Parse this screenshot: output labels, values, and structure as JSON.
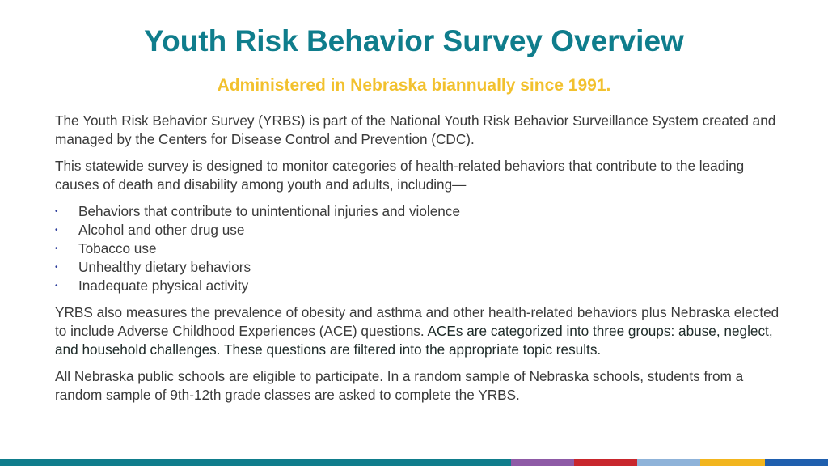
{
  "slide": {
    "title": "Youth Risk Behavior Survey Overview",
    "subtitle": "Administered in Nebraska biannually since 1991.",
    "paragraph1": "The Youth Risk Behavior Survey (YRBS) is part of the National Youth Risk Behavior Surveillance System created and managed by the Centers for Disease Control and Prevention (CDC).",
    "paragraph2": "This statewide survey is designed to monitor categories of health-related behaviors that contribute to the leading causes of death and disability among youth and adults, including—",
    "bullets": [
      "Behaviors that contribute to unintentional injuries and violence",
      "Alcohol and other drug use",
      "Tobacco use",
      "Unhealthy dietary behaviors",
      "Inadequate physical activity"
    ],
    "bullet_glyph": "•",
    "paragraph3_a": "YRBS also measures the prevalence of obesity and asthma and other health-related behaviors plus Nebraska elected to include Adverse Childhood Experiences (ACE) questions.",
    "paragraph3_b": " ACEs are categorized into three groups: abuse, neglect, and household challenges. These questions are filtered into the appropriate topic results.",
    "paragraph4": "All Nebraska public schools are eligible to participate. In a random sample of Nebraska schools, students from a random sample of 9th-12th grade classes are asked to complete the YRBS."
  },
  "colors": {
    "title": "#0f7d8c",
    "subtitle": "#f2c12e",
    "text": "#3a3a3a",
    "bullet": "#2a3b9a",
    "footer": [
      "#0f7d8c",
      "#8e5aa6",
      "#c8272d",
      "#8fb3d9",
      "#f2b51e",
      "#1f5fae"
    ]
  }
}
